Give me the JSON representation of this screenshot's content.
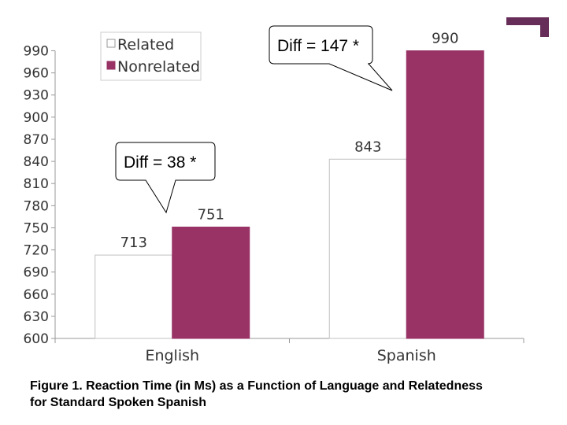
{
  "chart_data": {
    "type": "bar",
    "categories": [
      "English",
      "Spanish"
    ],
    "series": [
      {
        "name": "Related",
        "values": [
          713,
          843
        ],
        "color": "#ffffff"
      },
      {
        "name": "Nonrelated",
        "values": [
          751,
          990
        ],
        "color": "#993366"
      }
    ],
    "ylim": [
      600,
      990
    ],
    "yticks": [
      600,
      630,
      660,
      690,
      720,
      750,
      780,
      810,
      840,
      870,
      900,
      930,
      960,
      990
    ],
    "xlabel": "",
    "ylabel": "",
    "title": "",
    "grid": false,
    "legend": "top-left",
    "annotations": [
      {
        "text": "Diff = 38 *",
        "category": "English"
      },
      {
        "text": "Diff = 147 *",
        "category": "Spanish"
      }
    ]
  },
  "caption": {
    "line1": "Figure 1. Reaction Time (in Ms) as a Function of Language and Relatedness",
    "line2": "for Standard Spoken Spanish"
  },
  "decoration": {
    "corner_accent_color": "#662d59"
  }
}
